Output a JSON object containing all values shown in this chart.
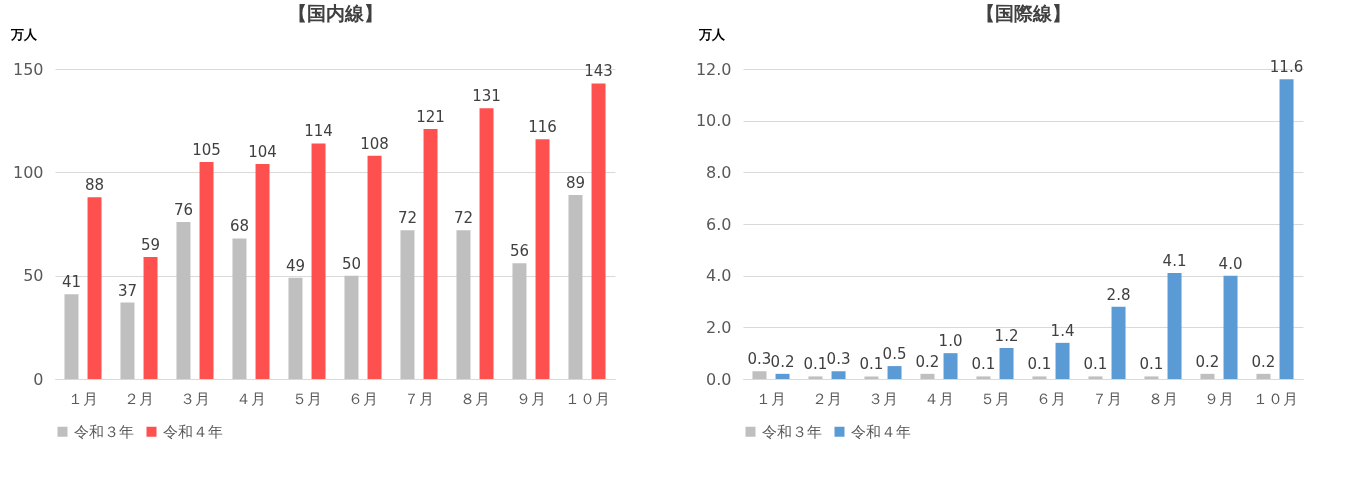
{
  "chart_data": [
    {
      "type": "bar",
      "title": "【国内線】",
      "ylabel": "万人",
      "categories": [
        "１月",
        "２月",
        "３月",
        "４月",
        "５月",
        "６月",
        "７月",
        "８月",
        "９月",
        "１０月"
      ],
      "ylim": [
        0,
        150
      ],
      "yticks": [
        0,
        50,
        100,
        150
      ],
      "grid": "y",
      "legend": "bottom",
      "data_labels": true,
      "series": [
        {
          "name": "令和３年",
          "color": "#bfbfbf",
          "values": [
            41,
            37,
            76,
            68,
            49,
            50,
            72,
            72,
            56,
            89
          ]
        },
        {
          "name": "令和４年",
          "color": "#ff5050",
          "values": [
            88,
            59,
            105,
            104,
            114,
            108,
            121,
            131,
            116,
            143
          ]
        }
      ]
    },
    {
      "type": "bar",
      "title": "【国際線】",
      "ylabel": "万人",
      "categories": [
        "１月",
        "２月",
        "３月",
        "４月",
        "５月",
        "６月",
        "７月",
        "８月",
        "９月",
        "１０月"
      ],
      "ylim": [
        0,
        12
      ],
      "yticks": [
        {
          "value": 0,
          "label": "0.0"
        },
        {
          "value": 2,
          "label": "2.0"
        },
        {
          "value": 4,
          "label": "4.0"
        },
        {
          "value": 6,
          "label": "6.0"
        },
        {
          "value": 8,
          "label": "8.0"
        },
        {
          "value": 10,
          "label": "10.0"
        },
        {
          "value": 12,
          "label": "12.0"
        }
      ],
      "grid": "y",
      "legend": "bottom",
      "series": [
        {
          "name": "令和３年",
          "color": "#bfbfbf",
          "values": [
            0.3,
            0.1,
            0.1,
            0.2,
            0.1,
            0.1,
            0.1,
            0.1,
            0.2,
            0.2
          ],
          "value_labels": [
            "0.3",
            "0.1",
            "0.1",
            "0.2",
            "0.1",
            "0.1",
            "0.1",
            "0.1",
            "0.2",
            "0.2"
          ]
        },
        {
          "name": "令和４年",
          "color": "#5b9bd5",
          "values": [
            0.2,
            0.3,
            0.5,
            1.0,
            1.2,
            1.4,
            2.8,
            4.1,
            4.0,
            11.6
          ],
          "value_labels": [
            "0.2",
            "0.3",
            "0.5",
            "1.0",
            "1.2",
            "1.4",
            "2.8",
            "4.1",
            "4.0",
            "11.6"
          ]
        }
      ]
    }
  ]
}
